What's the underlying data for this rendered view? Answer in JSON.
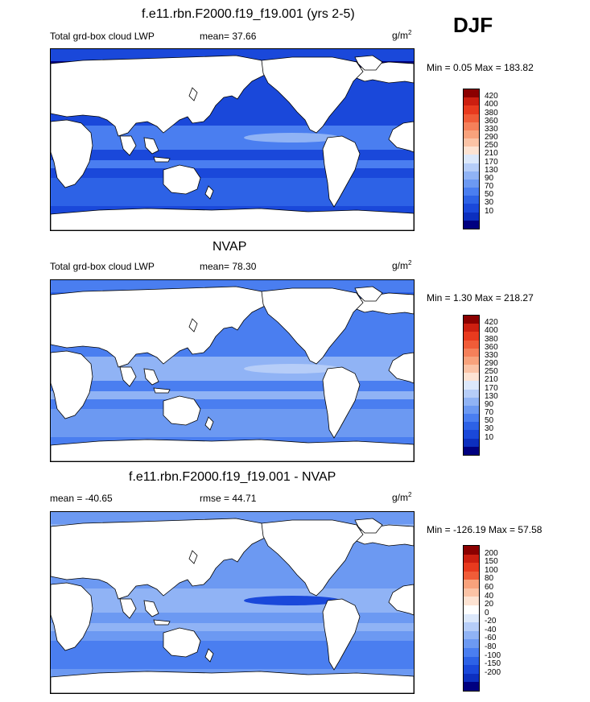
{
  "season": "DJF",
  "units_base": "g/m",
  "units_exp": "2",
  "colors": {
    "lwp_scale": [
      "#000080",
      "#0c2fbf",
      "#1a48da",
      "#2d62e6",
      "#4a7ef0",
      "#6c99f2",
      "#90b3f5",
      "#b6cdf8",
      "#dce8fb",
      "#fde3d3",
      "#fbc3a6",
      "#f8a27c",
      "#f5805a",
      "#f05c38",
      "#e83a1e",
      "#cc1f10",
      "#8b0000"
    ],
    "diff_scale": [
      "#000080",
      "#0c2fbf",
      "#1a48da",
      "#2d62e6",
      "#4a7ef0",
      "#6c99f2",
      "#90b3f5",
      "#b6cdf8",
      "#dce8fb",
      "#ffffff",
      "#fde3d3",
      "#fbc3a6",
      "#f8a27c",
      "#f05c38",
      "#e83a1e",
      "#cc1f10",
      "#8b0000"
    ],
    "land": "#ffffff",
    "coast": "#000000"
  },
  "panels": [
    {
      "title": "f.e11.rbn.F2000.f19_f19.001 (yrs 2-5)",
      "left_label": "Total grd-box cloud LWP",
      "stat_label": "mean=  37.66",
      "minmax": "Min =   0.05 Max = 183.82",
      "ticks": [
        "420",
        "400",
        "380",
        "360",
        "330",
        "290",
        "250",
        "210",
        "170",
        "130",
        "90",
        "70",
        "50",
        "30",
        "10"
      ],
      "ocean": {
        "base": "#1a48da",
        "band_tropics": "#4a7ef0",
        "band_south": "#2d62e6",
        "band_polar": "#000080",
        "spot": "#90b3f5"
      }
    },
    {
      "title": "NVAP",
      "left_label": "Total grd-box cloud LWP",
      "stat_label": "mean=  78.30",
      "minmax": "Min =   1.30 Max = 218.27",
      "ticks": [
        "420",
        "400",
        "380",
        "360",
        "330",
        "290",
        "250",
        "210",
        "170",
        "130",
        "90",
        "70",
        "50",
        "30",
        "10"
      ],
      "ocean": {
        "base": "#4a7ef0",
        "band_tropics": "#90b3f5",
        "band_south": "#6c99f2",
        "band_polar": "#2d62e6",
        "spot": "#b6cdf8"
      }
    },
    {
      "title": "f.e11.rbn.F2000.f19_f19.001 - NVAP",
      "left_label": "mean = -40.65",
      "stat_label": "rmse =  44.71",
      "minmax": "Min = -126.19 Max =  57.58",
      "ticks": [
        "200",
        "150",
        "100",
        "80",
        "60",
        "40",
        "20",
        "0",
        "-20",
        "-40",
        "-60",
        "-80",
        "-100",
        "-150",
        "-200"
      ],
      "ocean": {
        "base": "#6c99f2",
        "band_tropics": "#90b3f5",
        "band_south": "#4a7ef0",
        "band_polar": "#90b3f5",
        "spot": "#1a48da"
      }
    }
  ]
}
